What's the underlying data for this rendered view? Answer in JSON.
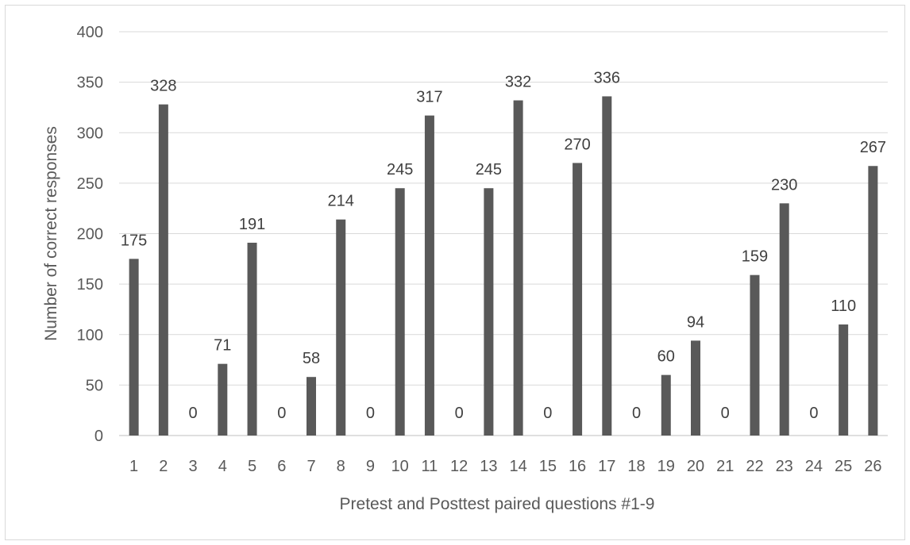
{
  "chart_data": {
    "type": "bar",
    "title": "",
    "xlabel": "Pretest and Posttest  paired questions #1-9",
    "ylabel": "Number of correct  responses",
    "categories": [
      "1",
      "2",
      "3",
      "4",
      "5",
      "6",
      "7",
      "8",
      "9",
      "10",
      "11",
      "12",
      "13",
      "14",
      "15",
      "16",
      "17",
      "18",
      "19",
      "20",
      "21",
      "22",
      "23",
      "24",
      "25",
      "26"
    ],
    "values": [
      175,
      328,
      0,
      71,
      191,
      0,
      58,
      214,
      0,
      245,
      317,
      0,
      245,
      332,
      0,
      270,
      336,
      0,
      60,
      94,
      0,
      159,
      230,
      0,
      110,
      267
    ],
    "ylim": [
      0,
      400
    ],
    "yticks": [
      0,
      50,
      100,
      150,
      200,
      250,
      300,
      350,
      400
    ],
    "grid": true,
    "data_labels": true,
    "bar_color": "#595959",
    "grid_color": "#d9d9d9"
  }
}
